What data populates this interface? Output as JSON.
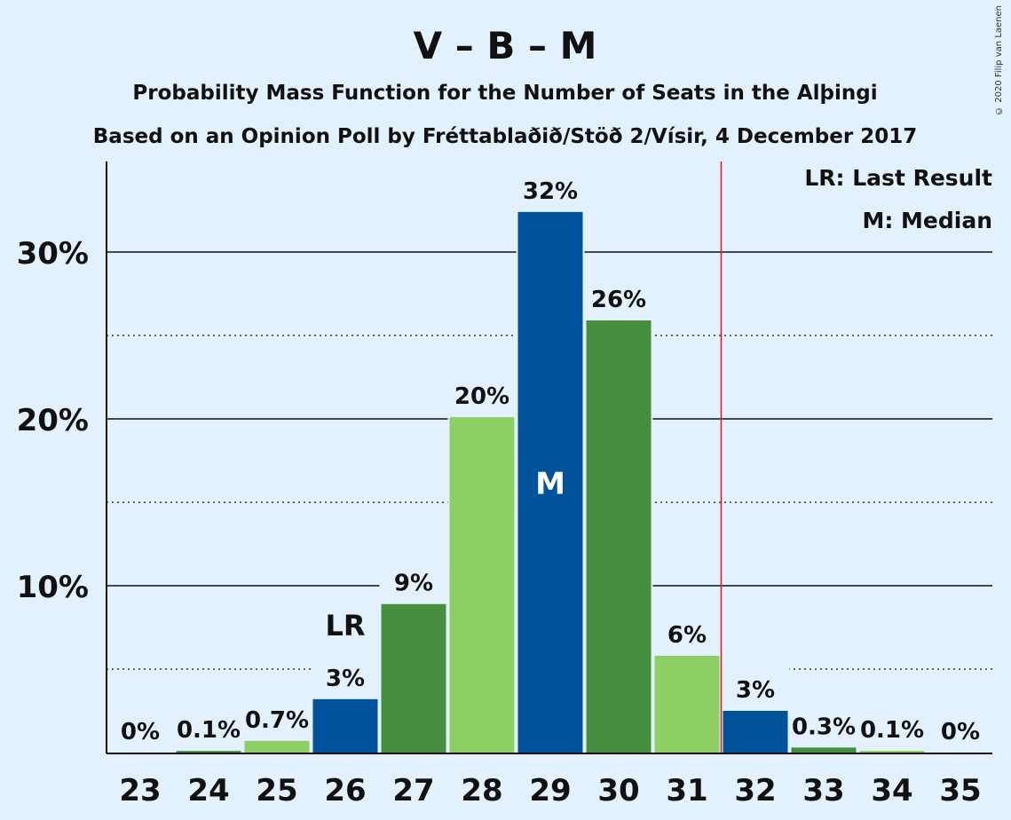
{
  "title": "V – B – M",
  "subtitle1": "Probability Mass Function for the Number of Seats in the Alþingi",
  "subtitle2": "Based on an Opinion Poll by Fréttablaðið/Stöð 2/Vísir, 4 December 2017",
  "copyright": "© 2020 Filip van Laenen",
  "legend": {
    "lr": "LR: Last Result",
    "m": "M: Median"
  },
  "colors": {
    "background": "#e3f1ff",
    "dark_blue": "#00529b",
    "dark_green": "#468f3f",
    "light_green": "#8dce65",
    "red_line": "#e0201c"
  },
  "chart_data": {
    "type": "bar",
    "categories": [
      "23",
      "24",
      "25",
      "26",
      "27",
      "28",
      "29",
      "30",
      "31",
      "32",
      "33",
      "34",
      "35"
    ],
    "values": [
      0,
      0.1,
      0.7,
      3.2,
      8.9,
      20.1,
      32.4,
      25.9,
      5.8,
      2.5,
      0.3,
      0.1,
      0
    ],
    "labels": [
      "0%",
      "0.1%",
      "0.7%",
      "3%",
      "9%",
      "20%",
      "32%",
      "26%",
      "6%",
      "3%",
      "0.3%",
      "0.1%",
      "0%"
    ],
    "bar_colors": [
      "#00529b",
      "#468f3f",
      "#8dce65",
      "#00529b",
      "#468f3f",
      "#8dce65",
      "#00529b",
      "#468f3f",
      "#8dce65",
      "#00529b",
      "#468f3f",
      "#8dce65",
      "#00529b"
    ],
    "y_ticks": [
      "10%",
      "20%",
      "30%"
    ],
    "y_tick_values": [
      10,
      20,
      30
    ],
    "ylim": [
      0,
      35
    ],
    "last_result": "26",
    "last_result_label": "LR",
    "median": "29",
    "median_label": "M",
    "majority_line_between": [
      "31",
      "32"
    ]
  }
}
